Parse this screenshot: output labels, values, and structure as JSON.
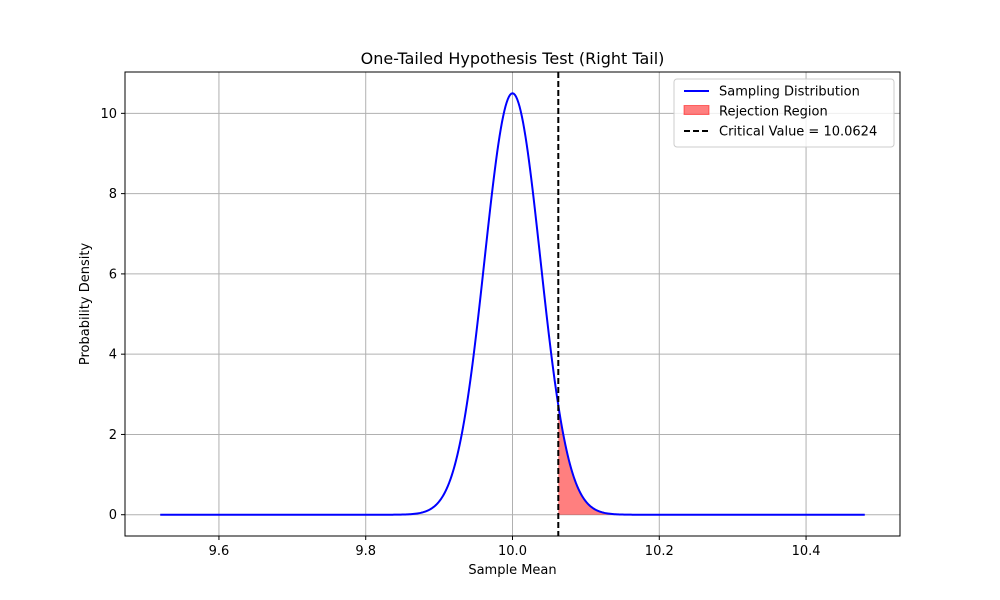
{
  "chart_data": {
    "type": "line",
    "title": "One-Tailed Hypothesis Test (Right Tail)",
    "xlabel": "Sample Mean",
    "ylabel": "Probability Density",
    "xlim": [
      9.472,
      10.528
    ],
    "ylim": [
      -0.53,
      11.03
    ],
    "xticks": [
      9.6,
      9.8,
      10.0,
      10.2,
      10.4
    ],
    "xtick_labels": [
      "9.6",
      "9.8",
      "10.0",
      "10.2",
      "10.4"
    ],
    "yticks": [
      0,
      2,
      4,
      6,
      8,
      10
    ],
    "ytick_labels": [
      "0",
      "2",
      "4",
      "6",
      "8",
      "10"
    ],
    "grid": true,
    "legend_position": "top-right",
    "distribution": {
      "mean": 10.0,
      "std": 0.038,
      "x_range": [
        9.52,
        10.48
      ],
      "peak_density": 10.5
    },
    "critical_value": 10.0624,
    "series": [
      {
        "name": "Sampling Distribution",
        "kind": "line",
        "color": "#0000ff"
      },
      {
        "name": "Rejection Region",
        "kind": "area",
        "color": "#ff0000",
        "opacity": 0.5,
        "x_from": 10.0624
      },
      {
        "name": "Critical Value = 10.0624",
        "kind": "vline",
        "color": "#000000",
        "style": "dashed",
        "x": 10.0624
      }
    ]
  }
}
